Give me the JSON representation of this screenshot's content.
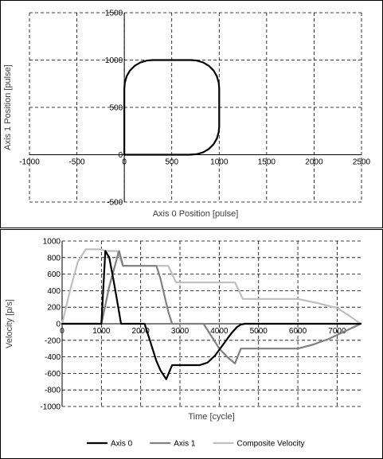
{
  "chart_data": [
    {
      "type": "line",
      "xlabel": "Axis 0 Position [pulse]",
      "ylabel": "Axis 1 Position [pulse]",
      "xlim": [
        -1000,
        2500
      ],
      "ylim": [
        -500,
        1500
      ],
      "xticks": [
        -1000,
        -500,
        0,
        500,
        1000,
        1500,
        2000,
        2500
      ],
      "yticks": [
        -500,
        0,
        500,
        1000,
        1500
      ],
      "xtick_labels": [
        "-1000",
        "-500",
        "0",
        "500",
        "1000",
        "1500",
        "2000",
        "2500"
      ],
      "ytick_labels": [
        "-500",
        "0",
        "500",
        "1000",
        "1500"
      ],
      "grid": true,
      "series": [
        {
          "color": "#000000",
          "x": [
            0,
            680,
            760,
            830,
            890,
            940,
            975,
            995,
            1000,
            1000,
            995,
            975,
            940,
            890,
            830,
            760,
            700,
            300,
            240,
            170,
            110,
            60,
            25,
            5,
            0,
            0
          ],
          "y": [
            0,
            0,
            5,
            25,
            60,
            110,
            170,
            240,
            300,
            700,
            760,
            830,
            890,
            940,
            975,
            995,
            1000,
            1000,
            995,
            975,
            940,
            890,
            830,
            760,
            700,
            0
          ]
        }
      ]
    },
    {
      "type": "line",
      "xlabel": "Time [cycle]",
      "ylabel": "Velocity [p/s]",
      "xlim": [
        0,
        7600
      ],
      "ylim": [
        -1000,
        1000
      ],
      "xticks": [
        0,
        1000,
        2000,
        3000,
        4000,
        5000,
        6000,
        7000
      ],
      "yticks": [
        -1000,
        -800,
        -600,
        -400,
        -200,
        0,
        200,
        400,
        600,
        800,
        1000
      ],
      "xtick_labels": [
        "0",
        "1000",
        "2000",
        "3000",
        "4000",
        "5000",
        "6000",
        "7000"
      ],
      "ytick_labels": [
        "-1000",
        "-800",
        "-600",
        "-400",
        "-200",
        "0",
        "200",
        "400",
        "600",
        "800",
        "1000"
      ],
      "grid": true,
      "legend": "bottom",
      "series": [
        {
          "name": "Axis 0",
          "color": "#000000",
          "x": [
            0,
            1000,
            1100,
            1200,
            1300,
            1400,
            1500,
            2100,
            2200,
            2300,
            2400,
            2500,
            2650,
            2800,
            3500,
            3700,
            3900,
            4100,
            4300,
            4450,
            4550,
            4650,
            7600
          ],
          "y": [
            0,
            0,
            880,
            800,
            550,
            280,
            0,
            0,
            -150,
            -300,
            -450,
            -560,
            -670,
            -500,
            -500,
            -470,
            -380,
            -250,
            -120,
            -40,
            -10,
            0,
            0
          ]
        },
        {
          "name": "Axis 1",
          "color": "#808080",
          "x": [
            0,
            1000,
            1200,
            1400,
            1450,
            1550,
            2400,
            2500,
            2600,
            2700,
            2800,
            3600,
            3800,
            4000,
            4200,
            4400,
            4550,
            6000,
            6400,
            6800,
            7200,
            7600
          ],
          "y": [
            0,
            0,
            450,
            800,
            880,
            700,
            700,
            550,
            350,
            150,
            0,
            0,
            -150,
            -300,
            -400,
            -480,
            -300,
            -300,
            -250,
            -180,
            -90,
            0
          ]
        },
        {
          "name": "Composite Velocity",
          "color": "#bfbfbf",
          "x": [
            0,
            200,
            400,
            600,
            1000,
            1100,
            1400,
            1550,
            2700,
            2800,
            2900,
            4400,
            4500,
            4600,
            6000,
            6500,
            7000,
            7300,
            7600
          ],
          "y": [
            0,
            400,
            750,
            900,
            900,
            880,
            880,
            700,
            700,
            600,
            500,
            500,
            400,
            300,
            300,
            250,
            190,
            100,
            0
          ]
        }
      ]
    }
  ]
}
